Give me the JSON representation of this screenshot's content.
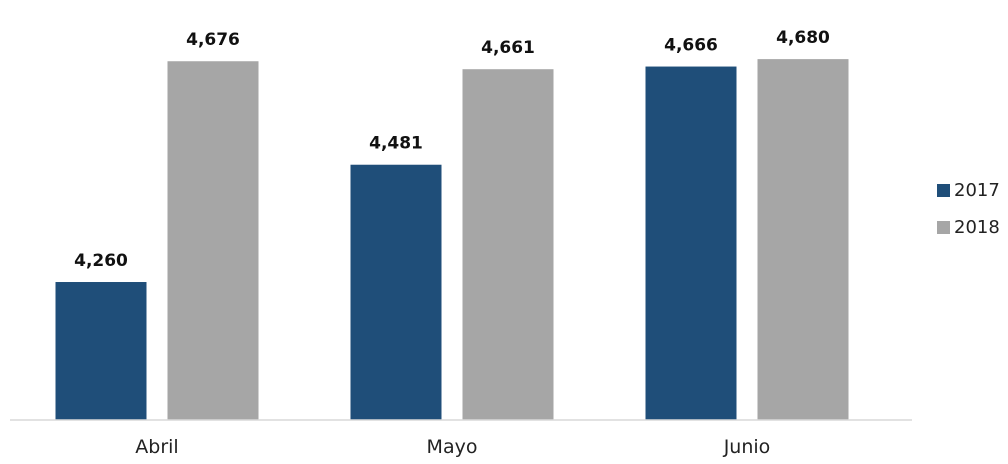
{
  "chart_data": {
    "type": "bar",
    "title": "",
    "xlabel": "",
    "ylabel": "",
    "categories": [
      "Abril",
      "Mayo",
      "Junio"
    ],
    "series": [
      {
        "name": "2017",
        "color": "#1f4e79",
        "values": [
          4260,
          4481,
          4666
        ],
        "labels": [
          "4,260",
          "4,481",
          "4,666"
        ]
      },
      {
        "name": "2018",
        "color": "#a6a6a6",
        "values": [
          4676,
          4661,
          4680
        ],
        "labels": [
          "4,676",
          "4,661",
          "4,680"
        ]
      }
    ],
    "ylim": [
      4000,
      4700
    ],
    "grid": false,
    "legend": "right"
  }
}
